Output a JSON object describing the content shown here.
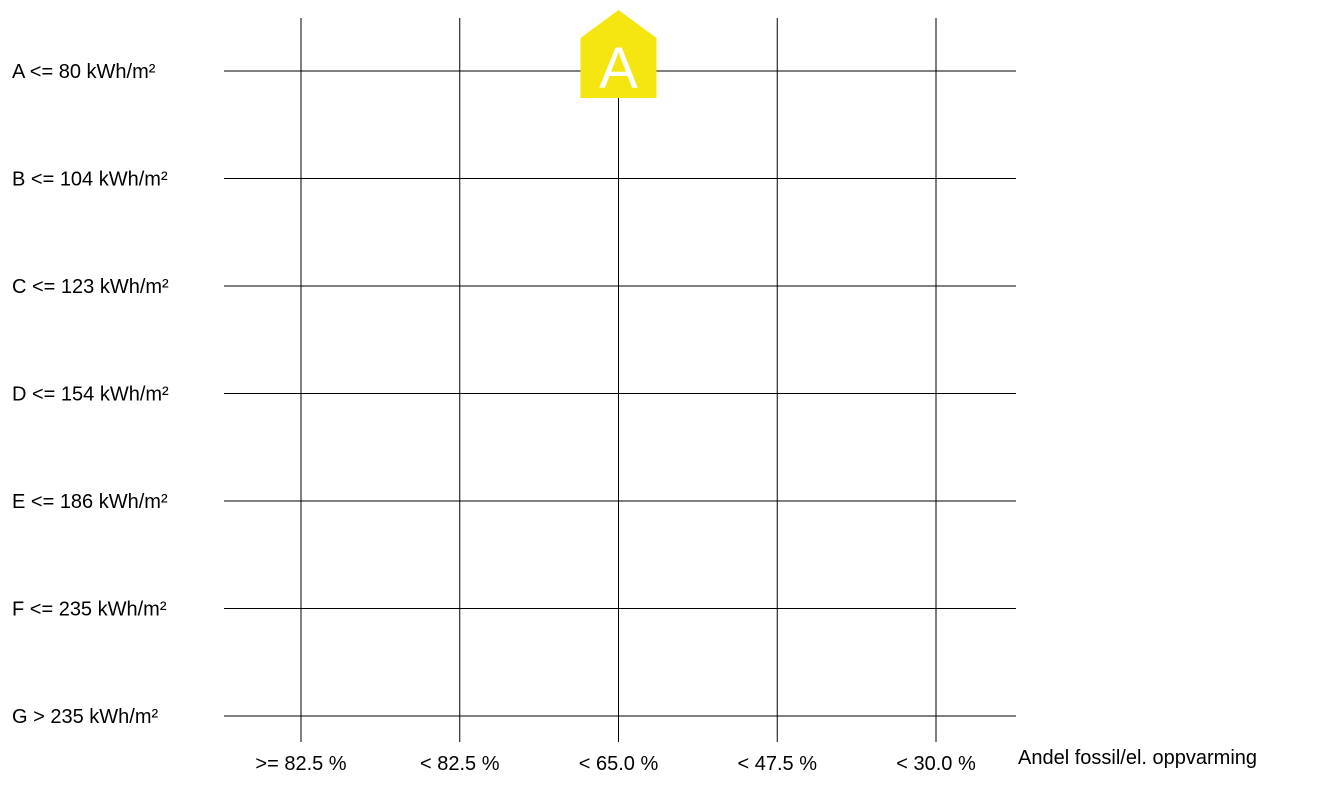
{
  "chart_data": {
    "type": "heatmap",
    "y_categories": [
      "A <= 80 kWh/m²",
      "B <= 104 kWh/m²",
      "C <= 123 kWh/m²",
      "D <= 154 kWh/m²",
      "E <= 186 kWh/m²",
      "F <= 235 kWh/m²",
      "G > 235 kWh/m²"
    ],
    "x_categories": [
      ">= 82.5 %",
      "< 82.5 %",
      "< 65.0 %",
      "< 47.5 %",
      "< 30.0 %"
    ],
    "xlabel": "Andel fossil/el. oppvarming",
    "ylabel": "",
    "title": "",
    "grid": true,
    "marker": {
      "label": "A",
      "energy_class": "A <= 80 kWh/m²",
      "heating_share": "< 65.0 %",
      "color": "#f5e612"
    },
    "line_color": "#000000",
    "text_color": "#000000",
    "marker_text_color": "#ffffff"
  }
}
